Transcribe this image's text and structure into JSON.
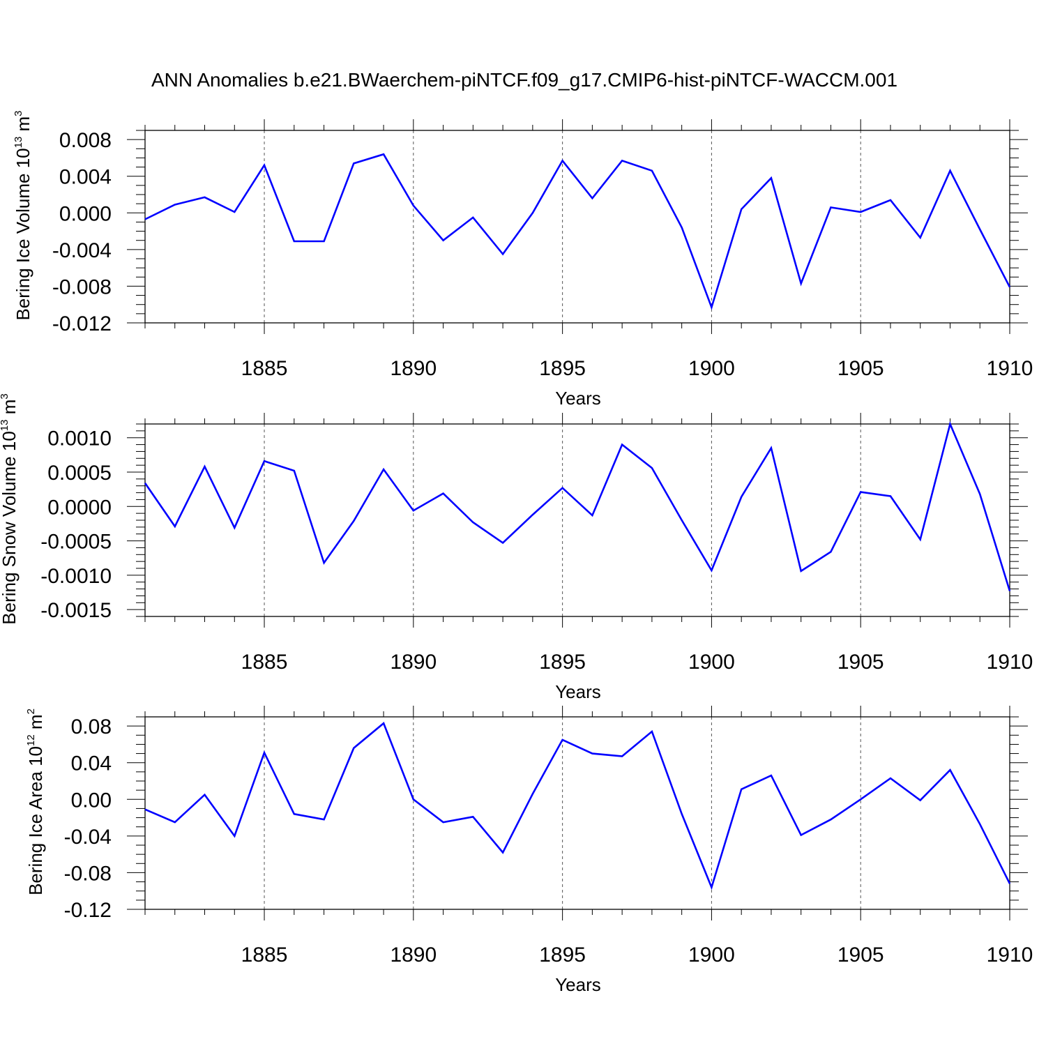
{
  "title": "ANN Anomalies b.e21.BWaerchem-piNTCF.f09_g17.CMIP6-hist-piNTCF-WACCM.001",
  "line_color": "#0000ff",
  "chart_data": [
    {
      "type": "line",
      "ylabel": "Bering Ice Volume 10",
      "ylabel_exp": "13",
      "ylabel_unit": " m",
      "ylabel_unit_exp": "3",
      "xlabel": "Years",
      "xlim": [
        1881,
        1910
      ],
      "ylim": [
        -0.012,
        0.009
      ],
      "major_y": [
        0.008,
        0.004,
        0.0,
        -0.004,
        -0.008,
        -0.012
      ],
      "y_tick_labels": [
        "0.008",
        "0.004",
        "0.000",
        "-0.004",
        "-0.008",
        "-0.012"
      ],
      "minor_y_step": 0.001,
      "major_x": [
        1885,
        1890,
        1895,
        1900,
        1905,
        1910
      ],
      "x_tick_labels": [
        "1885",
        "1890",
        "1895",
        "1900",
        "1905",
        "1910"
      ],
      "grid_x": [
        1885,
        1890,
        1895,
        1900,
        1905
      ],
      "x": [
        1881,
        1882,
        1883,
        1884,
        1885,
        1886,
        1887,
        1888,
        1889,
        1890,
        1891,
        1892,
        1893,
        1894,
        1895,
        1896,
        1897,
        1898,
        1899,
        1900,
        1901,
        1902,
        1903,
        1904,
        1905,
        1906,
        1907,
        1908,
        1909,
        1910
      ],
      "values": [
        -0.0007,
        0.0009,
        0.0017,
        0.0001,
        0.0052,
        -0.0031,
        -0.0031,
        0.0054,
        0.0064,
        0.0008,
        -0.003,
        -0.0005,
        -0.0045,
        0.0,
        0.0057,
        0.0016,
        0.0057,
        0.0046,
        -0.0016,
        -0.0103,
        0.0004,
        0.0038,
        -0.0077,
        0.0006,
        0.0001,
        0.0014,
        -0.0027,
        0.0046,
        -0.0018,
        -0.0081
      ]
    },
    {
      "type": "line",
      "ylabel": "Bering Snow Volume 10",
      "ylabel_exp": "13",
      "ylabel_unit": " m",
      "ylabel_unit_exp": "3",
      "xlabel": "Years",
      "xlim": [
        1881,
        1910
      ],
      "ylim": [
        -0.0016,
        0.0012
      ],
      "major_y": [
        0.001,
        0.0005,
        0.0,
        -0.0005,
        -0.001,
        -0.0015
      ],
      "y_tick_labels": [
        "0.0010",
        "0.0005",
        "0.0000",
        "-0.0005",
        "-0.0010",
        "-0.0015"
      ],
      "minor_y_step": 0.0001,
      "major_x": [
        1885,
        1890,
        1895,
        1900,
        1905,
        1910
      ],
      "x_tick_labels": [
        "1885",
        "1890",
        "1895",
        "1900",
        "1905",
        "1910"
      ],
      "grid_x": [
        1885,
        1890,
        1895,
        1900,
        1905
      ],
      "x": [
        1881,
        1882,
        1883,
        1884,
        1885,
        1886,
        1887,
        1888,
        1889,
        1890,
        1891,
        1892,
        1893,
        1894,
        1895,
        1896,
        1897,
        1898,
        1899,
        1900,
        1901,
        1902,
        1903,
        1904,
        1905,
        1906,
        1907,
        1908,
        1909,
        1910
      ],
      "values": [
        0.00034,
        -0.00029,
        0.00058,
        -0.00031,
        0.00066,
        0.00052,
        -0.00082,
        -0.00021,
        0.00054,
        -6e-05,
        0.00019,
        -0.00023,
        -0.00053,
        -0.00012,
        0.00027,
        -0.00013,
        0.0009,
        0.00056,
        -0.0002,
        -0.00093,
        0.00014,
        0.00085,
        -0.00094,
        -0.00066,
        0.00021,
        0.00015,
        -0.00048,
        0.0012,
        0.00018,
        -0.00123
      ]
    },
    {
      "type": "line",
      "ylabel": "Bering Ice Area 10",
      "ylabel_exp": "12",
      "ylabel_unit": " m",
      "ylabel_unit_exp": "2",
      "xlabel": "Years",
      "xlim": [
        1881,
        1910
      ],
      "ylim": [
        -0.12,
        0.09
      ],
      "major_y": [
        0.08,
        0.04,
        0.0,
        -0.04,
        -0.08,
        -0.12
      ],
      "y_tick_labels": [
        "0.08",
        "0.04",
        "0.00",
        "-0.04",
        "-0.08",
        "-0.12"
      ],
      "minor_y_step": 0.01,
      "major_x": [
        1885,
        1890,
        1895,
        1900,
        1905,
        1910
      ],
      "x_tick_labels": [
        "1885",
        "1890",
        "1895",
        "1900",
        "1905",
        "1910"
      ],
      "grid_x": [
        1885,
        1890,
        1895,
        1900,
        1905
      ],
      "x": [
        1881,
        1882,
        1883,
        1884,
        1885,
        1886,
        1887,
        1888,
        1889,
        1890,
        1891,
        1892,
        1893,
        1894,
        1895,
        1896,
        1897,
        1898,
        1899,
        1900,
        1901,
        1902,
        1903,
        1904,
        1905,
        1906,
        1907,
        1908,
        1909,
        1910
      ],
      "values": [
        -0.011,
        -0.025,
        0.005,
        -0.04,
        0.051,
        -0.016,
        -0.022,
        0.056,
        0.083,
        0.0,
        -0.025,
        -0.019,
        -0.058,
        0.006,
        0.065,
        0.05,
        0.047,
        0.074,
        -0.016,
        -0.096,
        0.011,
        0.026,
        -0.039,
        -0.022,
        0.0,
        0.023,
        -0.001,
        0.032,
        -0.027,
        -0.092
      ]
    }
  ]
}
